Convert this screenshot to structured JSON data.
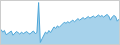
{
  "chart_data": {
    "type": "area",
    "values": [
      -1.0,
      -1.5,
      -1.2,
      -2.0,
      -1.8,
      -1.5,
      -1.3,
      -2.1,
      -1.7,
      -1.4,
      -1.6,
      -1.9,
      -1.5,
      -1.8,
      -1.6,
      -1.4,
      -1.7,
      -1.9,
      -1.5,
      -1.3,
      -1.8,
      -1.6,
      4.2,
      -3.5,
      -2.8,
      -2.0,
      -1.5,
      -1.8,
      -1.2,
      -1.6,
      -1.0,
      -0.5,
      -0.8,
      -0.3,
      -0.6,
      -0.2,
      0.1,
      0.4,
      0.2,
      0.5,
      0.3,
      0.6,
      0.8,
      0.5,
      0.9,
      1.1,
      0.8,
      1.0,
      1.3,
      1.0,
      1.2,
      1.5,
      1.2,
      1.4,
      1.6,
      1.3,
      1.5,
      1.8,
      1.5,
      1.7,
      1.4,
      1.6,
      1.9,
      1.6,
      0.8,
      1.4,
      1.7,
      1.5,
      0.6,
      1.0
    ],
    "color": "#4da6d8",
    "ylim": [
      -3.8,
      4.5
    ],
    "tick_labels": false,
    "grid": false
  }
}
